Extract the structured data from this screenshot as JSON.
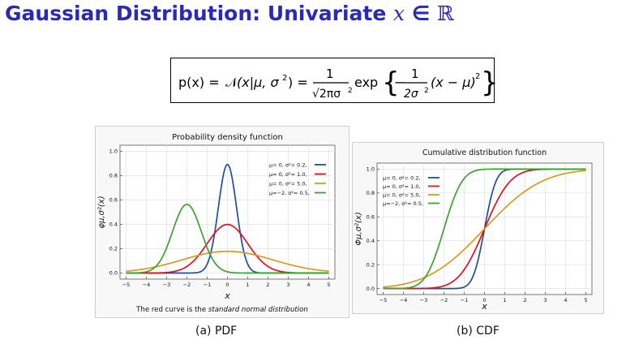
{
  "slide": {
    "title_text": "Gaussian Distribution: Univariate ",
    "title_var": "x",
    "title_in": " ∈ ",
    "title_set": "ℝ"
  },
  "formula": {
    "lhs": "p(x) = ",
    "normal_symbol": "𝒩",
    "normal_args": "(x|μ, σ",
    "sq": "2",
    "close": ") =",
    "frac1_num": "1",
    "frac1_den": "√2πσ",
    "frac1_den_sq": "2",
    "exp": "exp",
    "minus": "−",
    "frac2_num": "1",
    "frac2_den": "2σ",
    "frac2_den_sq": "2",
    "tail": "(x − μ)",
    "tail_sq": "2"
  },
  "captions": {
    "pdf": "(a)  PDF",
    "cdf": "(b)  CDF"
  },
  "colors": {
    "title": "#2a2ab5",
    "blue": "#1f4e9c",
    "red": "#e0101f",
    "orange": "#d99a1c",
    "green": "#3aa22e"
  },
  "chart_data": [
    {
      "type": "line",
      "title": "Probability density function",
      "xlabel": "x",
      "ylabel": "φμ,σ²(x)",
      "footer_prefix": "The red curve is the ",
      "footer_italic": "standard normal distribution",
      "xlim": [
        -5.3,
        5.3
      ],
      "ylim": [
        -0.05,
        1.05
      ],
      "xticks": [
        -5,
        -4,
        -3,
        -2,
        -1,
        0,
        1,
        2,
        3,
        4,
        5
      ],
      "xtick_labels": [
        "−5",
        "−4",
        "−3",
        "−2",
        "−1",
        "0",
        "1",
        "2",
        "3",
        "4",
        "5"
      ],
      "yticks": [
        0.0,
        0.2,
        0.4,
        0.6,
        0.8,
        1.0
      ],
      "ytick_labels": [
        "0.0",
        "0.2",
        "0.4",
        "0.6",
        "0.8",
        "1.0"
      ],
      "grid": true,
      "legend_position": "top-right",
      "series": [
        {
          "name": "μ= 0,    σ²= 0.2,",
          "mu": 0,
          "sigma2": 0.2,
          "color": "#1f4e9c",
          "x": [
            -5,
            -2,
            -1.5,
            -1,
            -0.75,
            -0.5,
            -0.25,
            0,
            0.25,
            0.5,
            0.75,
            1,
            1.5,
            2,
            5
          ],
          "y": [
            0.0,
            0.0,
            0.003,
            0.073,
            0.218,
            0.479,
            0.765,
            0.892,
            0.765,
            0.479,
            0.218,
            0.073,
            0.003,
            0.0,
            0.0
          ]
        },
        {
          "name": "μ= 0,    σ²= 1.0,",
          "mu": 0,
          "sigma2": 1.0,
          "color": "#e0101f",
          "x": [
            -5,
            -4,
            -3,
            -2.5,
            -2,
            -1.5,
            -1,
            -0.5,
            0,
            0.5,
            1,
            1.5,
            2,
            2.5,
            3,
            4,
            5
          ],
          "y": [
            0.0,
            0.0001,
            0.004,
            0.018,
            0.054,
            0.13,
            0.242,
            0.352,
            0.399,
            0.352,
            0.242,
            0.13,
            0.054,
            0.018,
            0.004,
            0.0001,
            0.0
          ]
        },
        {
          "name": "μ= 0,    σ²= 5.0,",
          "mu": 0,
          "sigma2": 5.0,
          "color": "#d99a1c",
          "x": [
            -5,
            -4,
            -3,
            -2,
            -1,
            0,
            1,
            2,
            3,
            4,
            5
          ],
          "y": [
            0.015,
            0.036,
            0.073,
            0.119,
            0.161,
            0.178,
            0.161,
            0.119,
            0.073,
            0.036,
            0.015
          ]
        },
        {
          "name": "μ=−2,    σ²= 0.5,",
          "mu": -2,
          "sigma2": 0.5,
          "color": "#3aa22e",
          "x": [
            -5,
            -4.5,
            -4,
            -3.5,
            -3,
            -2.5,
            -2,
            -1.5,
            -1,
            -0.5,
            0,
            0.5,
            1,
            5
          ],
          "y": [
            0.0,
            0.001,
            0.01,
            0.059,
            0.208,
            0.439,
            0.564,
            0.439,
            0.208,
            0.059,
            0.01,
            0.001,
            0.0,
            0.0
          ]
        }
      ]
    },
    {
      "type": "line",
      "title": "Cumulative distribution function",
      "xlabel": "x",
      "ylabel": "Φμ,σ²(x)",
      "xlim": [
        -5.3,
        5.3
      ],
      "ylim": [
        -0.05,
        1.05
      ],
      "xticks": [
        -5,
        -4,
        -3,
        -2,
        -1,
        0,
        1,
        2,
        3,
        4,
        5
      ],
      "xtick_labels": [
        "−5",
        "−4",
        "−3",
        "−2",
        "−1",
        "0",
        "1",
        "2",
        "3",
        "4",
        "5"
      ],
      "yticks": [
        0.0,
        0.2,
        0.4,
        0.6,
        0.8,
        1.0
      ],
      "ytick_labels": [
        "0.0",
        "0.2",
        "0.4",
        "0.6",
        "0.8",
        "1.0"
      ],
      "grid": true,
      "legend_position": "top-left",
      "series": [
        {
          "name": "μ= 0,    σ²= 0.2,",
          "mu": 0,
          "sigma2": 0.2,
          "color": "#1f4e9c",
          "x": [
            -5,
            -2,
            -1.5,
            -1,
            -0.75,
            -0.5,
            -0.25,
            0,
            0.25,
            0.5,
            0.75,
            1,
            1.5,
            2,
            5
          ],
          "y": [
            0.0,
            0.0,
            0.0004,
            0.013,
            0.047,
            0.132,
            0.288,
            0.5,
            0.712,
            0.868,
            0.953,
            0.987,
            0.9996,
            1.0,
            1.0
          ]
        },
        {
          "name": "μ= 0,    σ²= 1.0,",
          "mu": 0,
          "sigma2": 1.0,
          "color": "#e0101f",
          "x": [
            -5,
            -4,
            -3,
            -2.5,
            -2,
            -1.5,
            -1,
            -0.5,
            0,
            0.5,
            1,
            1.5,
            2,
            2.5,
            3,
            4,
            5
          ],
          "y": [
            0.0,
            0.0,
            0.001,
            0.006,
            0.023,
            0.067,
            0.159,
            0.309,
            0.5,
            0.691,
            0.841,
            0.933,
            0.977,
            0.994,
            0.999,
            1.0,
            1.0
          ]
        },
        {
          "name": "μ= 0,    σ²= 5.0,",
          "mu": 0,
          "sigma2": 5.0,
          "color": "#d99a1c",
          "x": [
            -5,
            -4,
            -3,
            -2,
            -1,
            0,
            1,
            2,
            3,
            4,
            5
          ],
          "y": [
            0.013,
            0.037,
            0.09,
            0.186,
            0.327,
            0.5,
            0.673,
            0.814,
            0.91,
            0.963,
            0.987
          ]
        },
        {
          "name": "μ=−2,    σ²= 0.5,",
          "mu": -2,
          "sigma2": 0.5,
          "color": "#3aa22e",
          "x": [
            -5,
            -4.5,
            -4,
            -3.5,
            -3,
            -2.5,
            -2,
            -1.5,
            -1,
            -0.5,
            0,
            0.5,
            1,
            5
          ],
          "y": [
            0.0,
            0.0002,
            0.002,
            0.017,
            0.079,
            0.24,
            0.5,
            0.76,
            0.921,
            0.983,
            0.998,
            0.9998,
            1.0,
            1.0
          ]
        }
      ]
    }
  ]
}
